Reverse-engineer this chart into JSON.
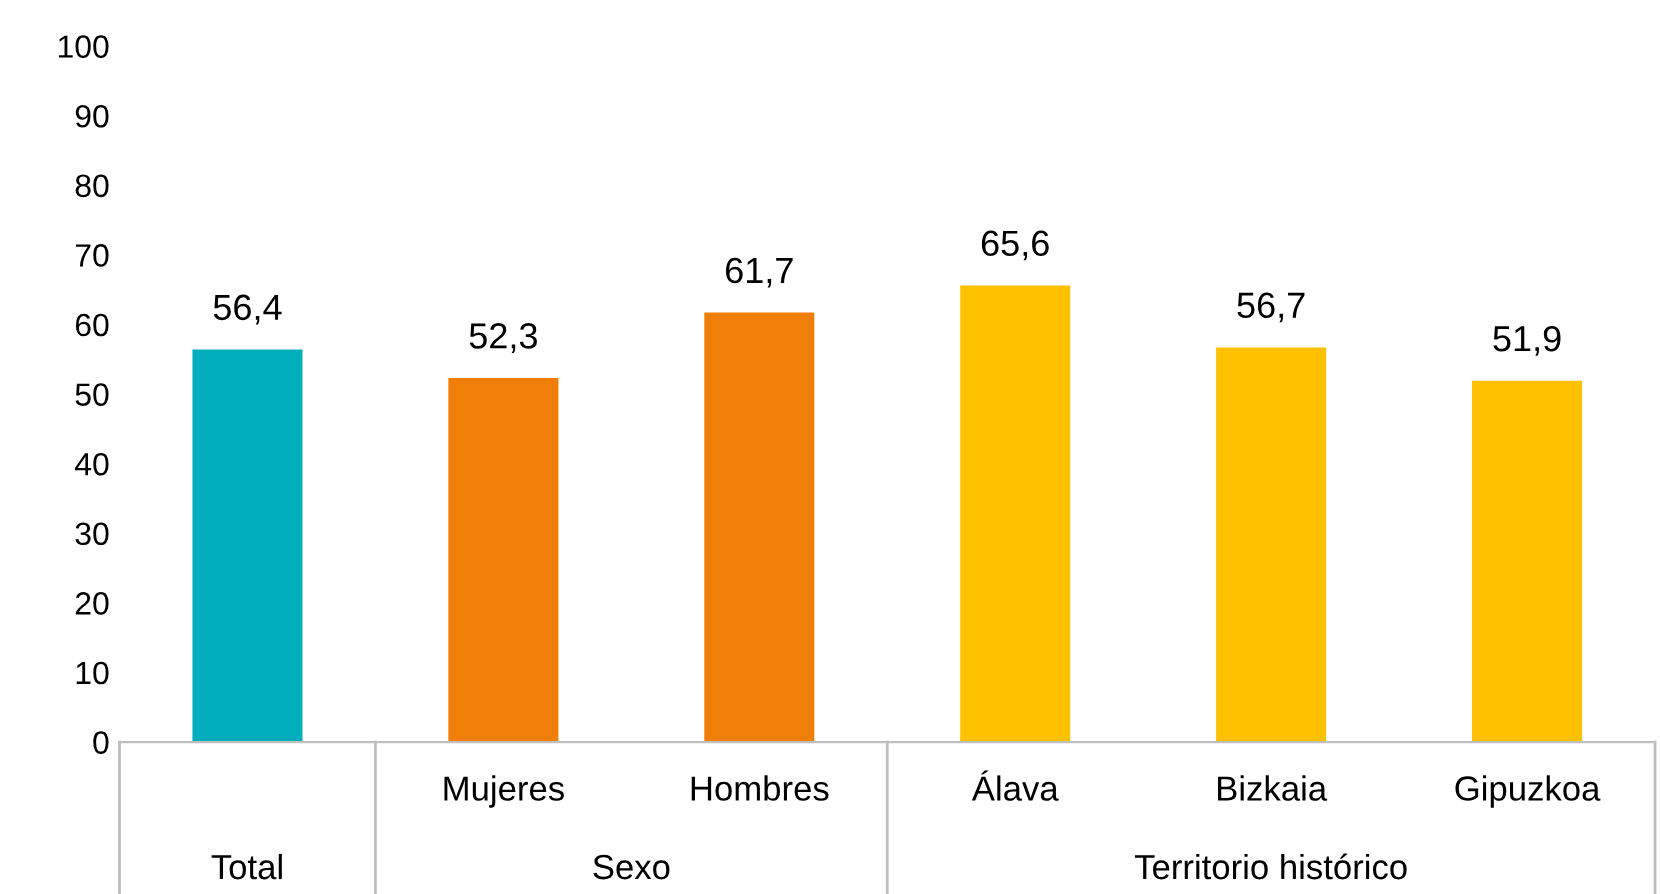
{
  "chart_data": {
    "type": "bar",
    "categories": [
      null,
      "Mujeres",
      "Hombres",
      "Álava",
      "Bizkaia",
      "Gipuzkoa"
    ],
    "values": [
      56.4,
      52.3,
      61.7,
      65.6,
      56.7,
      51.9
    ],
    "colors": [
      "#00aebd",
      "#f07f09",
      "#f07f09",
      "#ffc000",
      "#ffc000",
      "#ffc000"
    ],
    "annotations": [
      "Total",
      "Sexo",
      "Territorio histórico"
    ],
    "ylim": [
      0,
      100
    ],
    "yticks": [
      0,
      10,
      20,
      30,
      40,
      50,
      60,
      70,
      80,
      90,
      100
    ],
    "value_labels": [
      "56,4",
      "52,3",
      "61,7",
      "65,6",
      "56,7",
      "51,9"
    ],
    "grid": false,
    "legend": false
  }
}
